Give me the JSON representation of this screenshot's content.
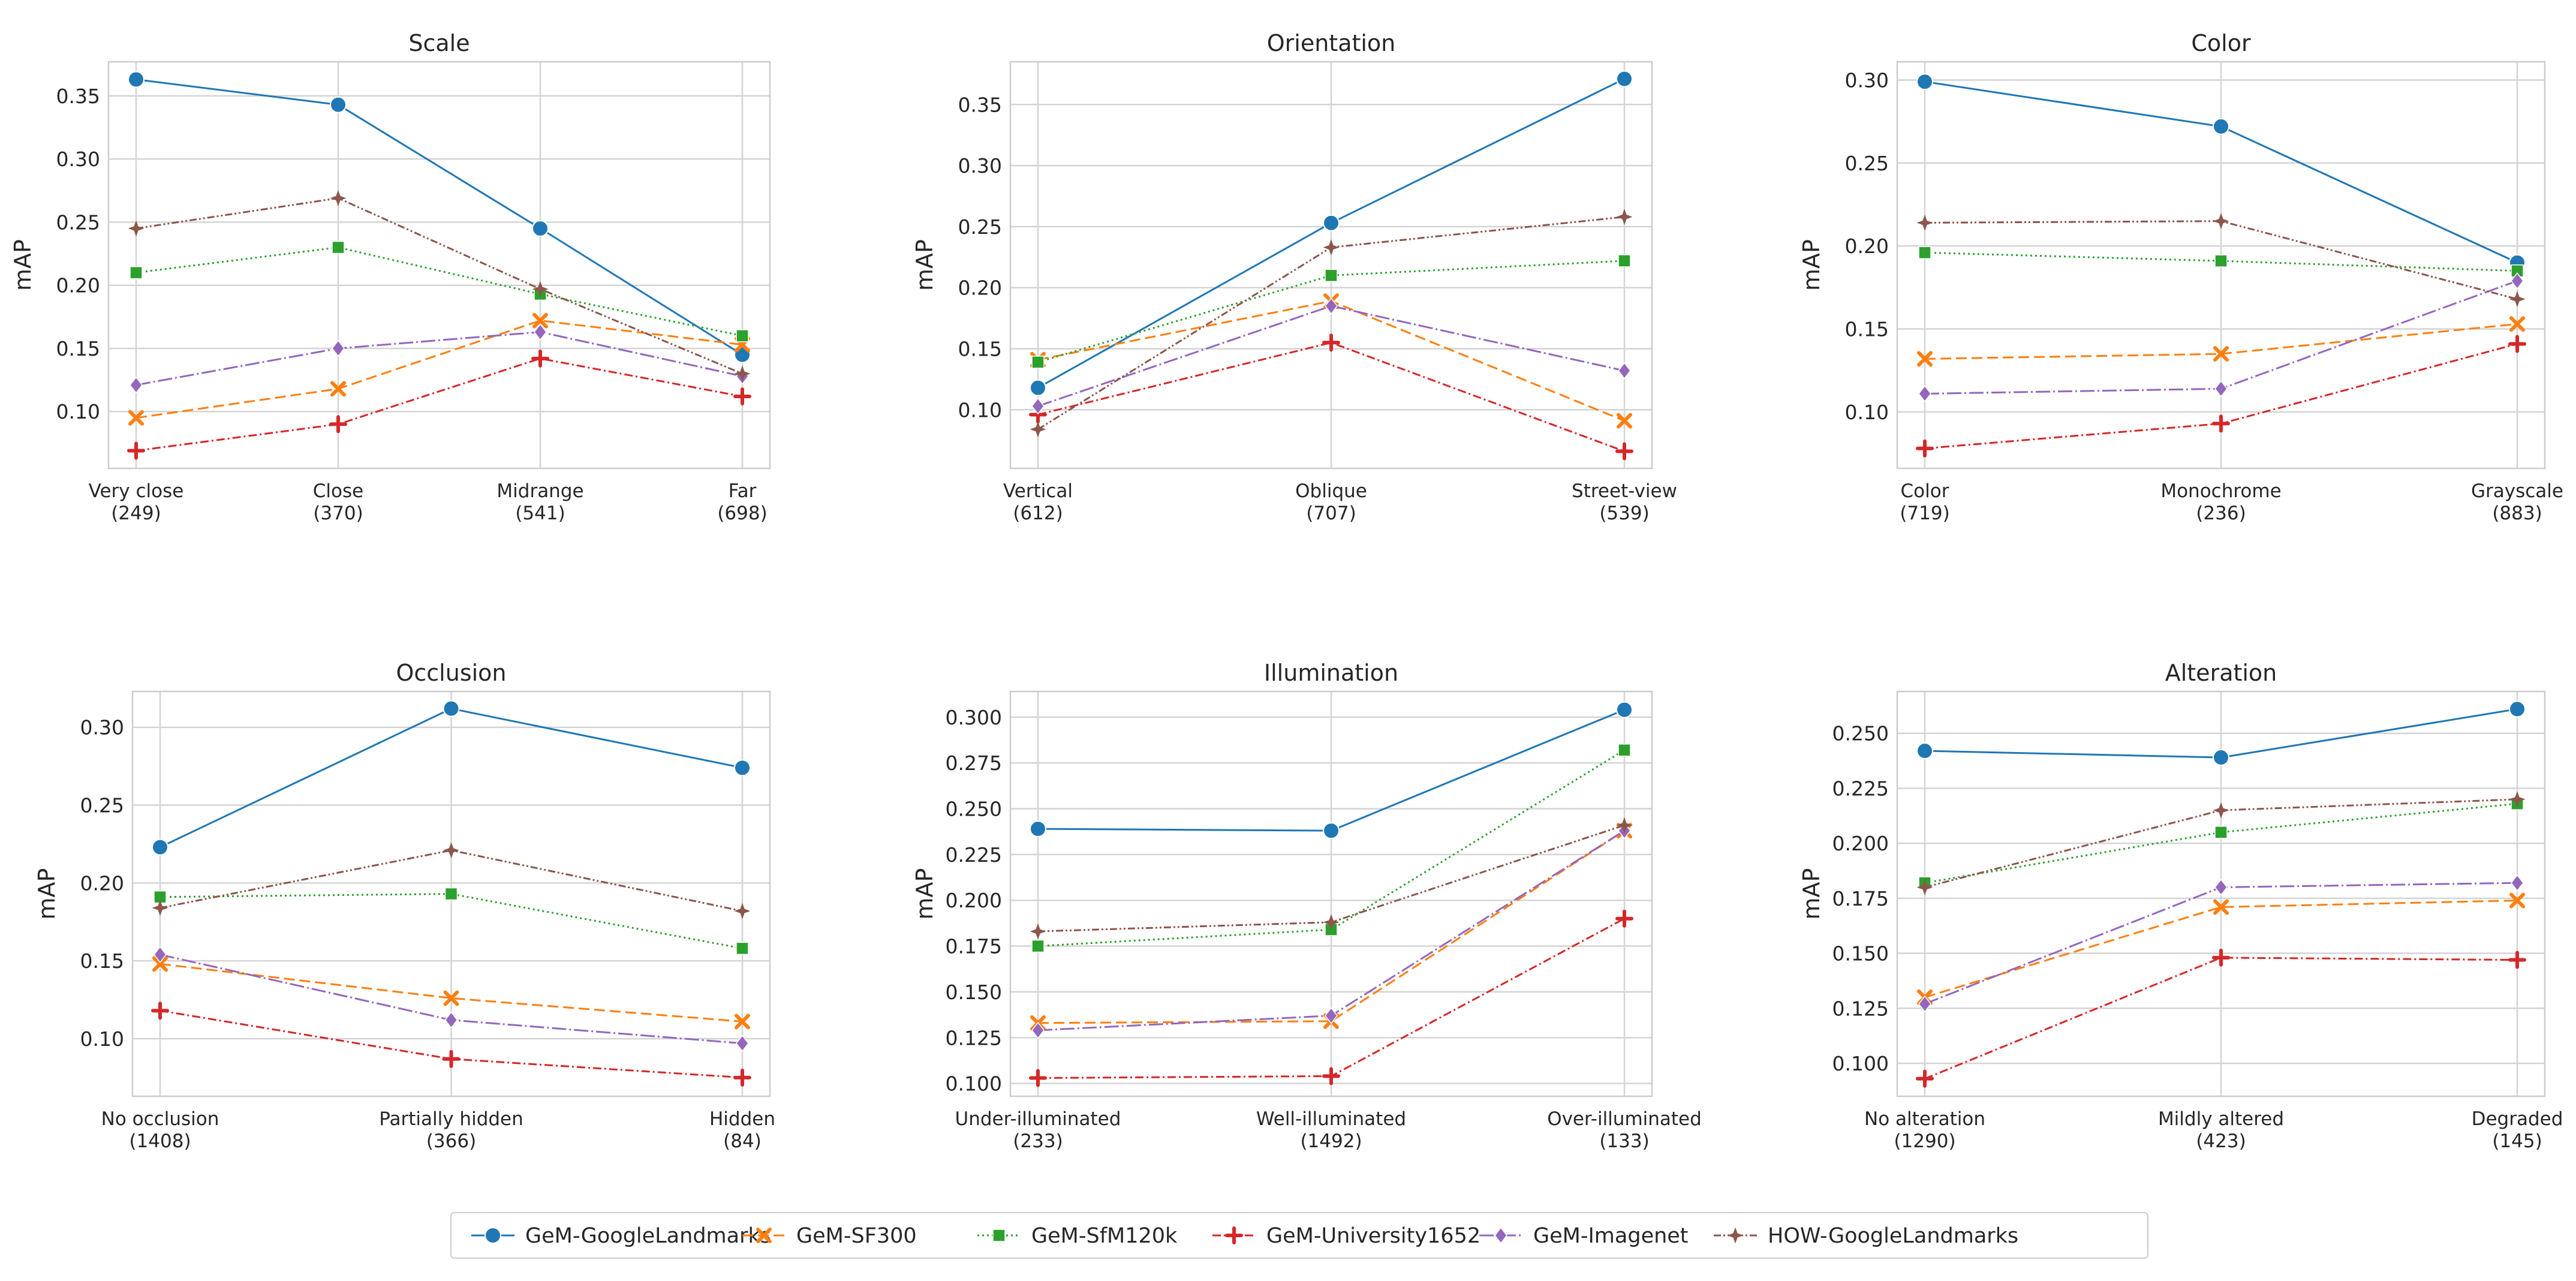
{
  "chart_data": [
    {
      "type": "line",
      "title": "Scale",
      "xlabel": "",
      "ylabel": "mAP",
      "grid": true,
      "categories": [
        "Very close\n(249)",
        "Close\n(370)",
        "Midrange\n(541)",
        "Far\n(698)"
      ],
      "yticks": [
        "0.10",
        "0.15",
        "0.20",
        "0.25",
        "0.30",
        "0.35"
      ],
      "ylim": [
        0.055,
        0.377
      ],
      "series": [
        {
          "name": "GeM-GoogleLandmarks",
          "values": [
            0.363,
            0.343,
            0.245,
            0.145
          ]
        },
        {
          "name": "GeM-SF300",
          "values": [
            0.095,
            0.118,
            0.172,
            0.153
          ]
        },
        {
          "name": "GeM-SfM120k",
          "values": [
            0.21,
            0.23,
            0.193,
            0.16
          ]
        },
        {
          "name": "GeM-University1652",
          "values": [
            0.069,
            0.09,
            0.142,
            0.112
          ]
        },
        {
          "name": "GeM-Imagenet",
          "values": [
            0.121,
            0.15,
            0.163,
            0.128
          ]
        },
        {
          "name": "HOW-GoogleLandmarks",
          "values": [
            0.245,
            0.269,
            0.197,
            0.13
          ]
        }
      ]
    },
    {
      "type": "line",
      "title": "Orientation",
      "xlabel": "",
      "ylabel": "mAP",
      "grid": true,
      "categories": [
        "Vertical\n(612)",
        "Oblique\n(707)",
        "Street-view\n(539)"
      ],
      "yticks": [
        "0.10",
        "0.15",
        "0.20",
        "0.25",
        "0.30",
        "0.35"
      ],
      "ylim": [
        0.052,
        0.385
      ],
      "series": [
        {
          "name": "GeM-GoogleLandmarks",
          "values": [
            0.118,
            0.253,
            0.371
          ]
        },
        {
          "name": "GeM-SF300",
          "values": [
            0.141,
            0.189,
            0.091
          ]
        },
        {
          "name": "GeM-SfM120k",
          "values": [
            0.139,
            0.21,
            0.222
          ]
        },
        {
          "name": "GeM-University1652",
          "values": [
            0.096,
            0.155,
            0.066
          ]
        },
        {
          "name": "GeM-Imagenet",
          "values": [
            0.103,
            0.185,
            0.132
          ]
        },
        {
          "name": "HOW-GoogleLandmarks",
          "values": [
            0.084,
            0.233,
            0.258
          ]
        }
      ]
    },
    {
      "type": "line",
      "title": "Color",
      "xlabel": "",
      "ylabel": "mAP",
      "grid": true,
      "categories": [
        "Color\n(719)",
        "Monochrome\n(236)",
        "Grayscale\n(883)"
      ],
      "yticks": [
        "0.10",
        "0.15",
        "0.20",
        "0.25",
        "0.30"
      ],
      "ylim": [
        0.066,
        0.311
      ],
      "series": [
        {
          "name": "GeM-GoogleLandmarks",
          "values": [
            0.299,
            0.272,
            0.19
          ]
        },
        {
          "name": "GeM-SF300",
          "values": [
            0.132,
            0.135,
            0.153
          ]
        },
        {
          "name": "GeM-SfM120k",
          "values": [
            0.196,
            0.191,
            0.185
          ]
        },
        {
          "name": "GeM-University1652",
          "values": [
            0.078,
            0.093,
            0.141
          ]
        },
        {
          "name": "GeM-Imagenet",
          "values": [
            0.111,
            0.114,
            0.179
          ]
        },
        {
          "name": "HOW-GoogleLandmarks",
          "values": [
            0.214,
            0.215,
            0.168
          ]
        }
      ]
    },
    {
      "type": "line",
      "title": "Occlusion",
      "xlabel": "",
      "ylabel": "mAP",
      "grid": true,
      "categories": [
        "No occlusion\n(1408)",
        "Partially hidden\n(366)",
        "Hidden\n(84)"
      ],
      "yticks": [
        "0.10",
        "0.15",
        "0.20",
        "0.25",
        "0.30"
      ],
      "ylim": [
        0.063,
        0.323
      ],
      "series": [
        {
          "name": "GeM-GoogleLandmarks",
          "values": [
            0.223,
            0.312,
            0.274
          ]
        },
        {
          "name": "GeM-SF300",
          "values": [
            0.148,
            0.126,
            0.111
          ]
        },
        {
          "name": "GeM-SfM120k",
          "values": [
            0.191,
            0.193,
            0.158
          ]
        },
        {
          "name": "GeM-University1652",
          "values": [
            0.118,
            0.087,
            0.075
          ]
        },
        {
          "name": "GeM-Imagenet",
          "values": [
            0.154,
            0.112,
            0.097
          ]
        },
        {
          "name": "HOW-GoogleLandmarks",
          "values": [
            0.184,
            0.221,
            0.182
          ]
        }
      ]
    },
    {
      "type": "line",
      "title": "Illumination",
      "xlabel": "",
      "ylabel": "mAP",
      "grid": true,
      "categories": [
        "Under-illuminated\n(233)",
        "Well-illuminated\n(1492)",
        "Over-illuminated\n(133)"
      ],
      "yticks": [
        "0.100",
        "0.125",
        "0.150",
        "0.175",
        "0.200",
        "0.225",
        "0.250",
        "0.275",
        "0.300"
      ],
      "ylim": [
        0.093,
        0.314
      ],
      "series": [
        {
          "name": "GeM-GoogleLandmarks",
          "values": [
            0.239,
            0.238,
            0.304
          ]
        },
        {
          "name": "GeM-SF300",
          "values": [
            0.133,
            0.134,
            0.238
          ]
        },
        {
          "name": "GeM-SfM120k",
          "values": [
            0.175,
            0.184,
            0.282
          ]
        },
        {
          "name": "GeM-University1652",
          "values": [
            0.103,
            0.104,
            0.19
          ]
        },
        {
          "name": "GeM-Imagenet",
          "values": [
            0.129,
            0.137,
            0.238
          ]
        },
        {
          "name": "HOW-GoogleLandmarks",
          "values": [
            0.183,
            0.188,
            0.241
          ]
        }
      ]
    },
    {
      "type": "line",
      "title": "Alteration",
      "xlabel": "",
      "ylabel": "mAP",
      "grid": true,
      "categories": [
        "No alteration\n(1290)",
        "Mildly altered\n(423)",
        "Degraded\n(145)"
      ],
      "yticks": [
        "0.100",
        "0.125",
        "0.150",
        "0.175",
        "0.200",
        "0.225",
        "0.250"
      ],
      "ylim": [
        0.085,
        0.269
      ],
      "series": [
        {
          "name": "GeM-GoogleLandmarks",
          "values": [
            0.242,
            0.239,
            0.261
          ]
        },
        {
          "name": "GeM-SF300",
          "values": [
            0.13,
            0.171,
            0.174
          ]
        },
        {
          "name": "GeM-SfM120k",
          "values": [
            0.182,
            0.205,
            0.218
          ]
        },
        {
          "name": "GeM-University1652",
          "values": [
            0.093,
            0.148,
            0.147
          ]
        },
        {
          "name": "GeM-Imagenet",
          "values": [
            0.127,
            0.18,
            0.182
          ]
        },
        {
          "name": "HOW-GoogleLandmarks",
          "values": [
            0.18,
            0.215,
            0.22
          ]
        }
      ]
    }
  ],
  "legend": {
    "placement": "bottom-center",
    "entries": [
      "GeM-GoogleLandmarks",
      "GeM-SF300",
      "GeM-SfM120k",
      "GeM-University1652",
      "GeM-Imagenet",
      "HOW-GoogleLandmarks"
    ]
  },
  "series_styles": {
    "GeM-GoogleLandmarks": {
      "color": "#1f77b4",
      "marker": "circle",
      "dash": "none"
    },
    "GeM-SF300": {
      "color": "#ff7f0e",
      "marker": "x",
      "dash": "dashed"
    },
    "GeM-SfM120k": {
      "color": "#2ca02c",
      "marker": "square",
      "dash": "dotted"
    },
    "GeM-University1652": {
      "color": "#d62728",
      "marker": "plus",
      "dash": "dashdot"
    },
    "GeM-Imagenet": {
      "color": "#9467bd",
      "marker": "diamond",
      "dash": "longdashdot"
    },
    "HOW-GoogleLandmarks": {
      "color": "#8c564b",
      "marker": "star",
      "dash": "dashdotdot"
    }
  }
}
